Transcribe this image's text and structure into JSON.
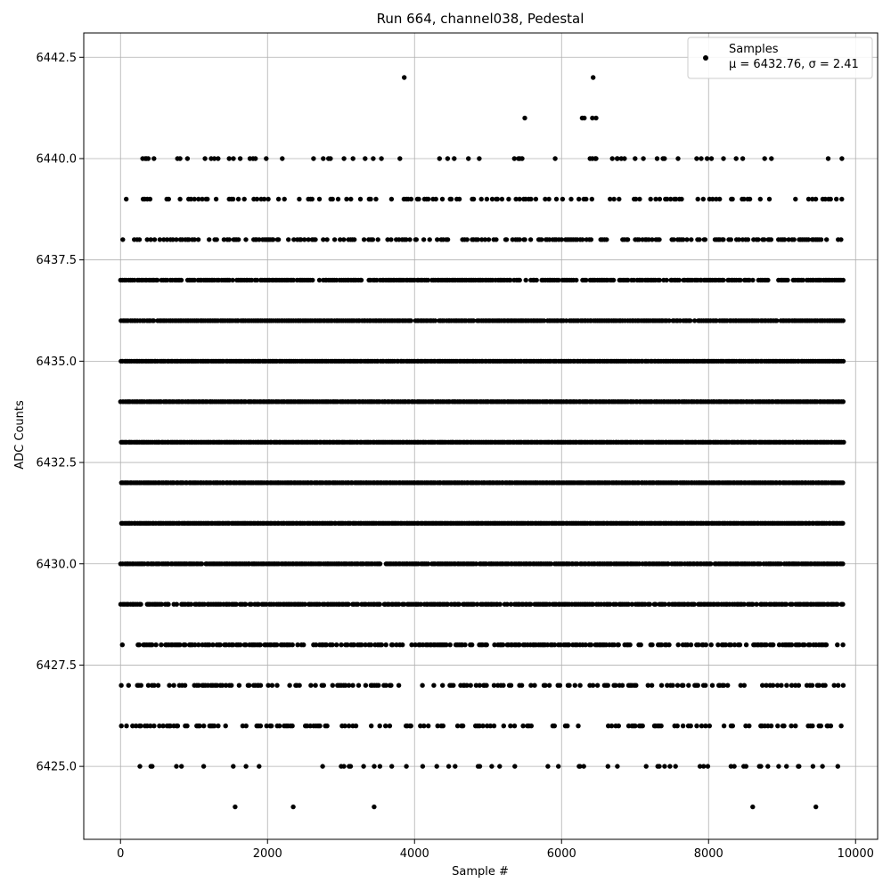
{
  "chart_data": {
    "type": "scatter",
    "title": "Run 664, channel038, Pedestal",
    "xlabel": "Sample #",
    "ylabel": "ADC Counts",
    "xlim": [
      -500,
      10300
    ],
    "ylim": [
      6423.2,
      6443.1
    ],
    "xticks": [
      0,
      2000,
      4000,
      6000,
      8000,
      10000
    ],
    "xtick_labels": [
      "0",
      "2000",
      "4000",
      "6000",
      "8000",
      "10000"
    ],
    "yticks": [
      6425.0,
      6427.5,
      6430.0,
      6432.5,
      6435.0,
      6437.5,
      6440.0,
      6442.5
    ],
    "ytick_labels": [
      "6425.0",
      "6427.5",
      "6430.0",
      "6432.5",
      "6435.0",
      "6437.5",
      "6440.0",
      "6442.5"
    ],
    "grid": true,
    "legend": {
      "placement": "top-right",
      "entry": "Samples",
      "stats": "μ = 6432.76, σ = 2.41"
    },
    "series": [
      {
        "name": "Samples",
        "color": "#000000",
        "n_samples": 9840,
        "x_range": [
          0,
          9840
        ],
        "mean": 6432.76,
        "sigma": 2.41,
        "levels": [
          6424,
          6425,
          6426,
          6427,
          6428,
          6429,
          6430,
          6431,
          6432,
          6433,
          6434,
          6435,
          6436,
          6437,
          6438,
          6439,
          6440,
          6441,
          6442
        ],
        "level_density": [
          0.08,
          0.12,
          0.3,
          0.4,
          0.65,
          0.85,
          0.96,
          1,
          1,
          1,
          1,
          1,
          0.96,
          0.85,
          0.5,
          0.3,
          0.12,
          0.05,
          0.02
        ],
        "outliers": [
          {
            "x": 3860,
            "y": 6442
          },
          {
            "x": 6430,
            "y": 6442
          },
          {
            "x": 5500,
            "y": 6441
          },
          {
            "x": 6280,
            "y": 6441
          },
          {
            "x": 6310,
            "y": 6441
          },
          {
            "x": 6420,
            "y": 6441
          },
          {
            "x": 6470,
            "y": 6441
          },
          {
            "x": 810,
            "y": 6440
          },
          {
            "x": 1150,
            "y": 6440
          },
          {
            "x": 3040,
            "y": 6440
          },
          {
            "x": 3550,
            "y": 6440
          },
          {
            "x": 3800,
            "y": 6440
          },
          {
            "x": 4340,
            "y": 6440
          },
          {
            "x": 4450,
            "y": 6440
          },
          {
            "x": 4880,
            "y": 6440
          },
          {
            "x": 6420,
            "y": 6440
          },
          {
            "x": 6470,
            "y": 6440
          },
          {
            "x": 6690,
            "y": 6440
          },
          {
            "x": 6760,
            "y": 6440
          },
          {
            "x": 7300,
            "y": 6440
          },
          {
            "x": 7900,
            "y": 6440
          },
          {
            "x": 1560,
            "y": 6424
          },
          {
            "x": 2350,
            "y": 6424
          },
          {
            "x": 3450,
            "y": 6424
          },
          {
            "x": 8600,
            "y": 6424
          },
          {
            "x": 9460,
            "y": 6424
          },
          {
            "x": 2750,
            "y": 6425
          },
          {
            "x": 3690,
            "y": 6425
          },
          {
            "x": 7990,
            "y": 6425
          },
          {
            "x": 8350,
            "y": 6425
          },
          {
            "x": 8690,
            "y": 6425
          },
          {
            "x": 9220,
            "y": 6425
          },
          {
            "x": 9420,
            "y": 6425
          },
          {
            "x": 9550,
            "y": 6425
          }
        ]
      }
    ]
  }
}
